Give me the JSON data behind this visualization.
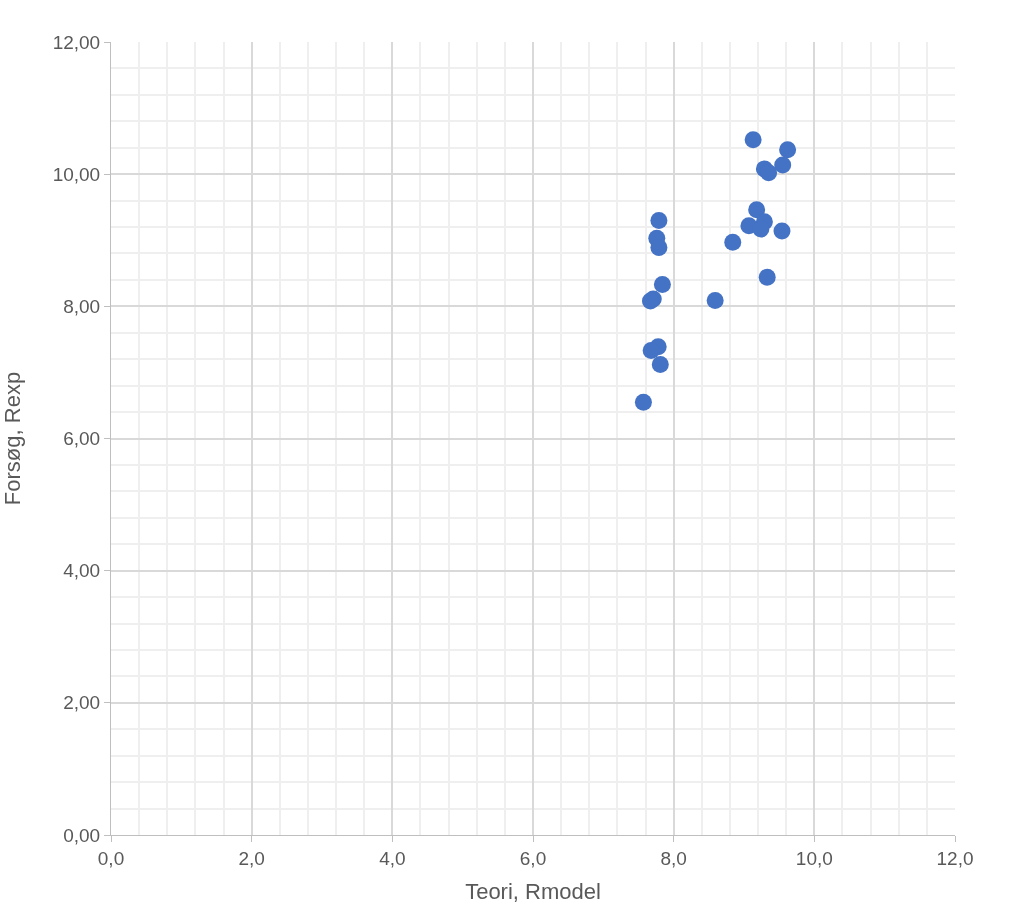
{
  "chart_data": {
    "type": "scatter",
    "xlabel": "Teori, Rmodel",
    "ylabel": "Forsøg, Rexp",
    "x": [
      9.13,
      9.62,
      9.55,
      9.29,
      9.35,
      9.18,
      7.79,
      7.76,
      7.79,
      8.84,
      9.07,
      9.29,
      9.24,
      9.54,
      9.33,
      7.84,
      7.71,
      7.67,
      8.59,
      7.78,
      7.68,
      7.81,
      7.57
    ],
    "series": [
      {
        "color": "#4472c4",
        "values": [
          10.52,
          10.37,
          10.14,
          10.08,
          10.02,
          9.46,
          9.3,
          9.03,
          8.89,
          8.97,
          9.22,
          9.28,
          9.17,
          9.14,
          8.44,
          8.33,
          8.11,
          8.08,
          8.09,
          7.39,
          7.33,
          7.12,
          6.55
        ]
      }
    ],
    "xlim": [
      0,
      12
    ],
    "ylim": [
      0,
      12
    ],
    "xticks": [
      {
        "value": 0,
        "label": "0,0"
      },
      {
        "value": 2,
        "label": "2,0"
      },
      {
        "value": 4,
        "label": "4,0"
      },
      {
        "value": 6,
        "label": "6,0"
      },
      {
        "value": 8,
        "label": "8,0"
      },
      {
        "value": 10,
        "label": "10,0"
      },
      {
        "value": 12,
        "label": "12,0"
      }
    ],
    "yticks": [
      {
        "value": 0,
        "label": "0,00"
      },
      {
        "value": 2,
        "label": "2,00"
      },
      {
        "value": 4,
        "label": "4,00"
      },
      {
        "value": 6,
        "label": "6,00"
      },
      {
        "value": 8,
        "label": "8,00"
      },
      {
        "value": 10,
        "label": "10,00"
      },
      {
        "value": 12,
        "label": "12,00"
      }
    ],
    "grid": true,
    "marker": "circle"
  }
}
